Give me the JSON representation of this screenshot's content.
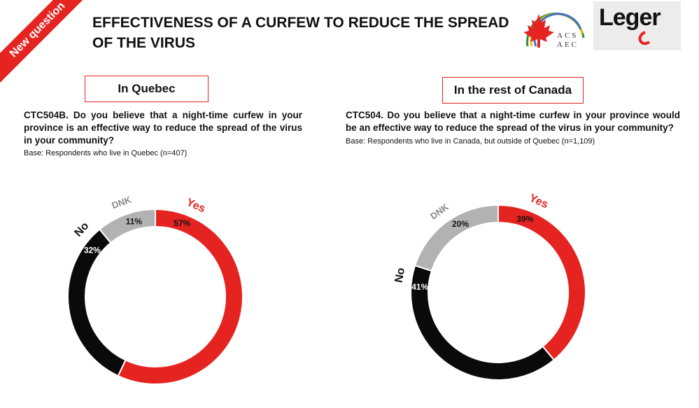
{
  "header": {
    "badge": "New question",
    "title_line1": "EFFECTIVENESS OF A CURFEW TO REDUCE THE SPREAD",
    "title_line2": "OF THE VIRUS",
    "logo_acs_line1": "ACS",
    "logo_acs_line2": "AEC",
    "logo_leger": "Leger"
  },
  "panels": [
    {
      "box_label": "In Quebec",
      "question": "CTC504B. Do you believe that a night-time curfew in your province is an effective way to reduce the spread of the virus in your community?",
      "base": "Base: Respondents who live in Quebec (n=407)"
    },
    {
      "box_label": "In the rest of Canada",
      "question": "CTC504. Do you believe that a night-time curfew in your province would be an effective way to reduce the spread of the virus in your community?",
      "base": "Base: Respondents who live in Canada, but outside of Quebec (n=1,109)"
    }
  ],
  "colors": {
    "yes": "#e52421",
    "no": "#0a0a0a",
    "dnk": "#b2b2b2",
    "accent": "#e52421"
  },
  "chart_data": [
    {
      "type": "pie",
      "title": "In Quebec",
      "categories": [
        "Yes",
        "No",
        "DNK"
      ],
      "values": [
        57,
        32,
        11
      ],
      "labels": [
        "57%",
        "32%",
        "11%"
      ]
    },
    {
      "type": "pie",
      "title": "In the rest of Canada",
      "categories": [
        "Yes",
        "No",
        "DNK"
      ],
      "values": [
        39,
        41,
        20
      ],
      "labels": [
        "39%",
        "41%",
        "20%"
      ]
    }
  ]
}
